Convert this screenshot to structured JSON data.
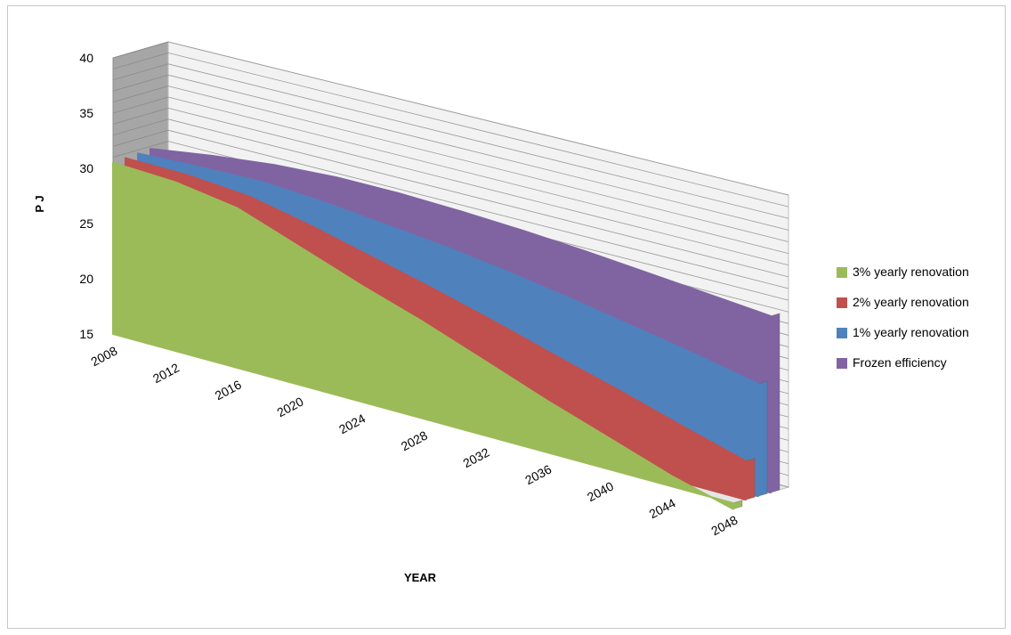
{
  "chart_data": {
    "type": "area",
    "title": "",
    "xlabel": "YEAR",
    "ylabel": "P J",
    "ylim": [
      15,
      40
    ],
    "yticks": [
      15,
      20,
      25,
      30,
      35,
      40
    ],
    "x": [
      2008,
      2012,
      2016,
      2020,
      2024,
      2028,
      2032,
      2036,
      2040,
      2044,
      2048
    ],
    "xtick_labels": [
      "2008",
      "2012",
      "2016",
      "2020",
      "2024",
      "2028",
      "2032",
      "2036",
      "2040",
      "2044",
      "2048"
    ],
    "grid": true,
    "legend_position": "right",
    "series": [
      {
        "name": "3% yearly renovation",
        "color": "#9bbb59",
        "values": [
          30.5,
          30.2,
          29.3,
          27.3,
          25.3,
          23.5,
          21.5,
          19.5,
          17.7,
          15.9,
          14.5
        ]
      },
      {
        "name": "2% yearly renovation",
        "color": "#c0504d",
        "values": [
          30.6,
          30.5,
          30.0,
          28.8,
          27.4,
          26.0,
          24.5,
          22.9,
          21.4,
          19.8,
          18.3
        ]
      },
      {
        "name": "1% yearly renovation",
        "color": "#4f81bd",
        "values": [
          30.7,
          30.9,
          31.0,
          30.6,
          30.0,
          29.4,
          28.6,
          27.7,
          26.7,
          25.7,
          24.6
        ]
      },
      {
        "name": "Frozen efficiency",
        "color": "#8064a2",
        "values": [
          30.8,
          31.6,
          32.2,
          32.5,
          32.5,
          32.3,
          32.0,
          31.6,
          31.1,
          30.6,
          30.1
        ]
      }
    ]
  }
}
